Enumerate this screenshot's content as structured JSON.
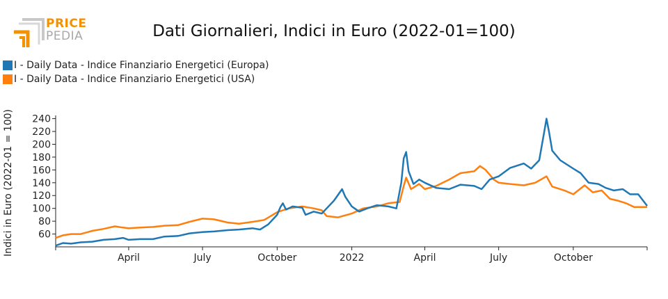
{
  "header": {
    "brand_line1": "PRICE",
    "brand_line2": "PEDIA",
    "title": "Dati Giornalieri, Indici in Euro (2022-01=100)"
  },
  "colors": {
    "europa": "#1f77b4",
    "usa": "#ff7f0e",
    "brand": "#f39200"
  },
  "chart_data": {
    "type": "line",
    "title": "Dati Giornalieri, Indici in Euro (2022-01=100)",
    "ylabel": "Indici in Euro (2022-01 = 100)",
    "xlabel": "",
    "ylim": [
      40,
      245
    ],
    "yticks": [
      60,
      80,
      100,
      120,
      140,
      160,
      180,
      200,
      220,
      240
    ],
    "xlim": [
      "2021-01-01",
      "2022-12-31"
    ],
    "xticks": [
      {
        "label": "April",
        "date": "2021-04-01"
      },
      {
        "label": "July",
        "date": "2021-07-01"
      },
      {
        "label": "October",
        "date": "2021-10-01"
      },
      {
        "label": "2022",
        "date": "2022-01-01"
      },
      {
        "label": "April",
        "date": "2022-04-01"
      },
      {
        "label": "July",
        "date": "2022-07-01"
      },
      {
        "label": "October",
        "date": "2022-10-01"
      }
    ],
    "legend_position": "top-left",
    "series": [
      {
        "name": "I - Daily Data - Indice Finanziario Energetici (Europa)",
        "color": "#1f77b4",
        "points": [
          [
            "2021-01-01",
            42
          ],
          [
            "2021-01-10",
            46
          ],
          [
            "2021-01-20",
            45
          ],
          [
            "2021-02-01",
            47
          ],
          [
            "2021-02-15",
            48
          ],
          [
            "2021-03-01",
            51
          ],
          [
            "2021-03-15",
            52
          ],
          [
            "2021-03-25",
            54
          ],
          [
            "2021-04-01",
            51
          ],
          [
            "2021-04-15",
            52
          ],
          [
            "2021-05-01",
            52
          ],
          [
            "2021-05-15",
            56
          ],
          [
            "2021-06-01",
            57
          ],
          [
            "2021-06-15",
            61
          ],
          [
            "2021-07-01",
            63
          ],
          [
            "2021-07-15",
            64
          ],
          [
            "2021-08-01",
            66
          ],
          [
            "2021-08-15",
            67
          ],
          [
            "2021-09-01",
            69
          ],
          [
            "2021-09-10",
            67
          ],
          [
            "2021-09-20",
            75
          ],
          [
            "2021-10-01",
            90
          ],
          [
            "2021-10-05",
            102
          ],
          [
            "2021-10-08",
            108
          ],
          [
            "2021-10-12",
            98
          ],
          [
            "2021-10-20",
            103
          ],
          [
            "2021-11-01",
            101
          ],
          [
            "2021-11-05",
            90
          ],
          [
            "2021-11-15",
            95
          ],
          [
            "2021-11-25",
            92
          ],
          [
            "2021-12-01",
            100
          ],
          [
            "2021-12-10",
            112
          ],
          [
            "2021-12-20",
            130
          ],
          [
            "2021-12-24",
            118
          ],
          [
            "2022-01-01",
            103
          ],
          [
            "2022-01-10",
            95
          ],
          [
            "2022-01-20",
            100
          ],
          [
            "2022-02-01",
            105
          ],
          [
            "2022-02-15",
            103
          ],
          [
            "2022-02-25",
            100
          ],
          [
            "2022-03-03",
            140
          ],
          [
            "2022-03-06",
            178
          ],
          [
            "2022-03-09",
            188
          ],
          [
            "2022-03-12",
            158
          ],
          [
            "2022-03-18",
            138
          ],
          [
            "2022-03-25",
            145
          ],
          [
            "2022-04-01",
            140
          ],
          [
            "2022-04-15",
            132
          ],
          [
            "2022-05-01",
            130
          ],
          [
            "2022-05-15",
            137
          ],
          [
            "2022-06-01",
            135
          ],
          [
            "2022-06-10",
            130
          ],
          [
            "2022-06-20",
            145
          ],
          [
            "2022-07-01",
            150
          ],
          [
            "2022-07-15",
            163
          ],
          [
            "2022-08-01",
            170
          ],
          [
            "2022-08-10",
            162
          ],
          [
            "2022-08-20",
            175
          ],
          [
            "2022-08-26",
            218
          ],
          [
            "2022-08-29",
            240
          ],
          [
            "2022-09-01",
            220
          ],
          [
            "2022-09-05",
            190
          ],
          [
            "2022-09-15",
            175
          ],
          [
            "2022-10-01",
            162
          ],
          [
            "2022-10-10",
            155
          ],
          [
            "2022-10-20",
            140
          ],
          [
            "2022-11-01",
            138
          ],
          [
            "2022-11-10",
            132
          ],
          [
            "2022-11-20",
            128
          ],
          [
            "2022-12-01",
            130
          ],
          [
            "2022-12-10",
            122
          ],
          [
            "2022-12-20",
            122
          ],
          [
            "2022-12-31",
            104
          ]
        ]
      },
      {
        "name": "I - Daily Data - Indice Finanziario Energetici (USA)",
        "color": "#ff7f0e",
        "points": [
          [
            "2021-01-01",
            54
          ],
          [
            "2021-01-10",
            58
          ],
          [
            "2021-01-20",
            60
          ],
          [
            "2021-02-01",
            60
          ],
          [
            "2021-02-15",
            65
          ],
          [
            "2021-03-01",
            68
          ],
          [
            "2021-03-15",
            72
          ],
          [
            "2021-03-25",
            70
          ],
          [
            "2021-04-01",
            69
          ],
          [
            "2021-04-15",
            70
          ],
          [
            "2021-05-01",
            71
          ],
          [
            "2021-05-15",
            73
          ],
          [
            "2021-06-01",
            74
          ],
          [
            "2021-06-15",
            79
          ],
          [
            "2021-07-01",
            84
          ],
          [
            "2021-07-15",
            83
          ],
          [
            "2021-08-01",
            78
          ],
          [
            "2021-08-15",
            76
          ],
          [
            "2021-09-01",
            79
          ],
          [
            "2021-09-15",
            82
          ],
          [
            "2021-10-01",
            94
          ],
          [
            "2021-10-15",
            100
          ],
          [
            "2021-11-01",
            103
          ],
          [
            "2021-11-15",
            100
          ],
          [
            "2021-11-25",
            97
          ],
          [
            "2021-12-01",
            88
          ],
          [
            "2021-12-15",
            86
          ],
          [
            "2022-01-01",
            92
          ],
          [
            "2022-01-15",
            100
          ],
          [
            "2022-02-01",
            103
          ],
          [
            "2022-02-15",
            108
          ],
          [
            "2022-03-01",
            110
          ],
          [
            "2022-03-06",
            135
          ],
          [
            "2022-03-09",
            148
          ],
          [
            "2022-03-15",
            130
          ],
          [
            "2022-03-25",
            138
          ],
          [
            "2022-04-01",
            130
          ],
          [
            "2022-04-15",
            135
          ],
          [
            "2022-05-01",
            145
          ],
          [
            "2022-05-15",
            155
          ],
          [
            "2022-06-01",
            158
          ],
          [
            "2022-06-08",
            166
          ],
          [
            "2022-06-15",
            160
          ],
          [
            "2022-06-25",
            145
          ],
          [
            "2022-07-01",
            140
          ],
          [
            "2022-07-15",
            138
          ],
          [
            "2022-08-01",
            136
          ],
          [
            "2022-08-15",
            140
          ],
          [
            "2022-08-29",
            150
          ],
          [
            "2022-09-05",
            134
          ],
          [
            "2022-09-20",
            128
          ],
          [
            "2022-10-01",
            122
          ],
          [
            "2022-10-15",
            136
          ],
          [
            "2022-10-25",
            125
          ],
          [
            "2022-11-05",
            128
          ],
          [
            "2022-11-15",
            115
          ],
          [
            "2022-11-25",
            112
          ],
          [
            "2022-12-05",
            108
          ],
          [
            "2022-12-15",
            102
          ],
          [
            "2022-12-31",
            102
          ]
        ]
      }
    ]
  }
}
